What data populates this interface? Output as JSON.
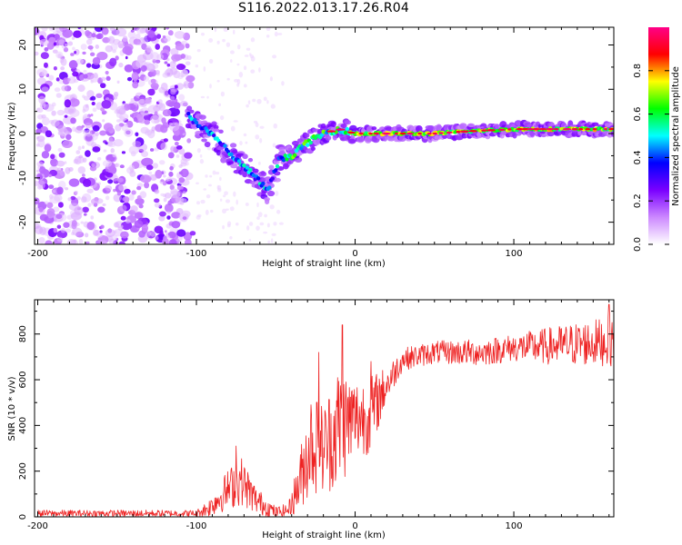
{
  "title": "S116.2022.013.17.26.R04",
  "chart_data": [
    {
      "type": "heatmap",
      "xlabel": "Height of straight line (km)",
      "ylabel": "Frequency (Hz)",
      "xlim": [
        -202,
        163
      ],
      "ylim": [
        -25,
        24
      ],
      "x_ticks": [
        -200,
        -100,
        0,
        100
      ],
      "y_ticks": [
        -20,
        -10,
        0,
        10,
        20
      ],
      "colorbar": {
        "label": "Normalized spectral amplitude",
        "range": [
          0,
          1
        ],
        "ticks": [
          0.0,
          0.2,
          0.4,
          0.6,
          0.8
        ],
        "colors": [
          "#ffffff",
          "#cc88ff",
          "#7a00ff",
          "#0000ff",
          "#00ffff",
          "#00ff00",
          "#ffff00",
          "#ff0000",
          "#ff0088"
        ]
      },
      "noise_region": {
        "x": [
          -200,
          -105
        ],
        "y": [
          -25,
          24
        ],
        "amplitude": 0.15
      },
      "ridge": [
        {
          "x": -105,
          "y": 4
        },
        {
          "x": -95,
          "y": 1
        },
        {
          "x": -85,
          "y": -2
        },
        {
          "x": -75,
          "y": -6
        },
        {
          "x": -65,
          "y": -9
        },
        {
          "x": -55,
          "y": -13
        },
        {
          "x": -48,
          "y": -6
        },
        {
          "x": -40,
          "y": -5
        },
        {
          "x": -30,
          "y": -2
        },
        {
          "x": -20,
          "y": 0
        },
        {
          "x": -10,
          "y": 1
        },
        {
          "x": 0,
          "y": 0
        },
        {
          "x": 20,
          "y": 0
        },
        {
          "x": 50,
          "y": 0
        },
        {
          "x": 70,
          "y": 0.5
        },
        {
          "x": 100,
          "y": 1
        },
        {
          "x": 130,
          "y": 1
        },
        {
          "x": 150,
          "y": 1
        },
        {
          "x": 163,
          "y": 1
        }
      ]
    },
    {
      "type": "line",
      "xlabel": "Height of straight line (km)",
      "ylabel": "SNR (10 * v/v)",
      "xlim": [
        -202,
        163
      ],
      "ylim": [
        0,
        950
      ],
      "x_ticks": [
        -200,
        -100,
        0,
        100
      ],
      "y_ticks": [
        0,
        200,
        400,
        600,
        800
      ],
      "color": "#ee2222",
      "envelope": [
        {
          "x": -200,
          "mean": 15,
          "spread": 15
        },
        {
          "x": -100,
          "mean": 15,
          "spread": 15
        },
        {
          "x": -92,
          "mean": 40,
          "spread": 40
        },
        {
          "x": -80,
          "mean": 120,
          "spread": 90
        },
        {
          "x": -72,
          "mean": 160,
          "spread": 110
        },
        {
          "x": -62,
          "mean": 70,
          "spread": 60
        },
        {
          "x": -50,
          "mean": 20,
          "spread": 25
        },
        {
          "x": -42,
          "mean": 30,
          "spread": 30
        },
        {
          "x": -35,
          "mean": 150,
          "spread": 130
        },
        {
          "x": -28,
          "mean": 330,
          "spread": 230
        },
        {
          "x": -20,
          "mean": 300,
          "spread": 200
        },
        {
          "x": -10,
          "mean": 400,
          "spread": 280
        },
        {
          "x": 0,
          "mean": 430,
          "spread": 180
        },
        {
          "x": 10,
          "mean": 450,
          "spread": 170
        },
        {
          "x": 20,
          "mean": 580,
          "spread": 80
        },
        {
          "x": 30,
          "mean": 690,
          "spread": 50
        },
        {
          "x": 50,
          "mean": 720,
          "spread": 50
        },
        {
          "x": 80,
          "mean": 720,
          "spread": 60
        },
        {
          "x": 100,
          "mean": 740,
          "spread": 60
        },
        {
          "x": 130,
          "mean": 750,
          "spread": 90
        },
        {
          "x": 163,
          "mean": 770,
          "spread": 110
        }
      ],
      "peaks": [
        {
          "x": -75,
          "y": 310
        },
        {
          "x": -23,
          "y": 720
        },
        {
          "x": -8,
          "y": 840
        },
        {
          "x": 10,
          "y": 680
        },
        {
          "x": 160,
          "y": 930
        }
      ]
    }
  ]
}
